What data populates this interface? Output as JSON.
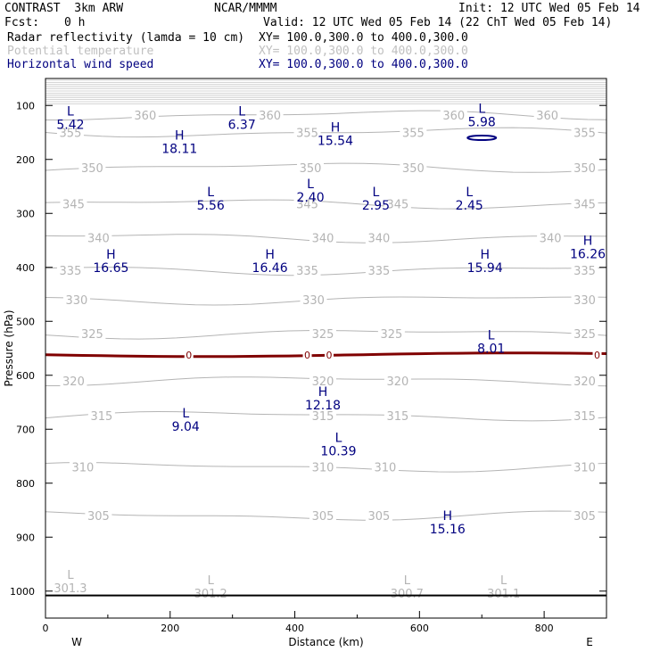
{
  "header": {
    "model": "CONTRAST  3km ARW",
    "source": "NCAR/MMMM",
    "init": "Init: 12 UTC Wed 05 Feb 14",
    "fcst_label": "Fcst:",
    "fcst_value": "0 h",
    "valid": "Valid: 12 UTC Wed 05 Feb 14 (22 ChT Wed 05 Feb 14)",
    "fields": [
      {
        "name": "Radar reflectivity (lamda = 10 cm)",
        "xy": "XY= 100.0,300.0 to 400.0,300.0",
        "color": "#000000"
      },
      {
        "name": "Potential temperature",
        "xy": "XY= 100.0,300.0 to 400.0,300.0",
        "color": "#c0c0c0"
      },
      {
        "name": "Horizontal wind speed",
        "xy": "XY= 100.0,300.0 to 400.0,300.0",
        "color": "#000080"
      }
    ]
  },
  "chart_data": {
    "type": "cross-section contour",
    "xlabel": "Distance (km)",
    "ylabel": "Pressure (hPa)",
    "xlim": [
      0,
      900
    ],
    "ylim": [
      1050,
      50
    ],
    "x_ticks": [
      "0",
      "200",
      "400",
      "600",
      "800"
    ],
    "x_tick_values": [
      0,
      200,
      400,
      600,
      800
    ],
    "y_ticks": [
      "100",
      "200",
      "300",
      "400",
      "500",
      "600",
      "700",
      "800",
      "900",
      "1000"
    ],
    "y_tick_values": [
      100,
      200,
      300,
      400,
      500,
      600,
      700,
      800,
      900,
      1000
    ],
    "west_label": "W",
    "east_label": "E",
    "theta_contours": [
      {
        "value": 355,
        "p": 150,
        "labels": [
          {
            "x": 40,
            "text": "355"
          },
          {
            "x": 420,
            "text": "355"
          },
          {
            "x": 590,
            "text": "355"
          },
          {
            "x": 865,
            "text": "355"
          }
        ]
      },
      {
        "value": 360,
        "p": 118,
        "labels": [
          {
            "x": 160,
            "text": "360"
          },
          {
            "x": 360,
            "text": "360"
          },
          {
            "x": 655,
            "text": "360"
          },
          {
            "x": 805,
            "text": "360"
          }
        ]
      },
      {
        "value": 350,
        "p": 215,
        "labels": [
          {
            "x": 75,
            "text": "350"
          },
          {
            "x": 425,
            "text": "350"
          },
          {
            "x": 590,
            "text": "350"
          },
          {
            "x": 865,
            "text": "350"
          }
        ]
      },
      {
        "value": 345,
        "p": 282,
        "labels": [
          {
            "x": 45,
            "text": "345"
          },
          {
            "x": 420,
            "text": "345"
          },
          {
            "x": 565,
            "text": "345"
          },
          {
            "x": 865,
            "text": "345"
          }
        ]
      },
      {
        "value": 340,
        "p": 345,
        "labels": [
          {
            "x": 85,
            "text": "340"
          },
          {
            "x": 445,
            "text": "340"
          },
          {
            "x": 535,
            "text": "340"
          },
          {
            "x": 810,
            "text": "340"
          }
        ]
      },
      {
        "value": 335,
        "p": 405,
        "labels": [
          {
            "x": 40,
            "text": "335"
          },
          {
            "x": 420,
            "text": "335"
          },
          {
            "x": 535,
            "text": "335"
          },
          {
            "x": 865,
            "text": "335"
          }
        ]
      },
      {
        "value": 330,
        "p": 460,
        "labels": [
          {
            "x": 50,
            "text": "330"
          },
          {
            "x": 430,
            "text": "330"
          },
          {
            "x": 865,
            "text": "330"
          }
        ]
      },
      {
        "value": 325,
        "p": 523,
        "labels": [
          {
            "x": 75,
            "text": "325"
          },
          {
            "x": 445,
            "text": "325"
          },
          {
            "x": 555,
            "text": "325"
          },
          {
            "x": 865,
            "text": "325"
          }
        ]
      },
      {
        "value": 320,
        "p": 610,
        "labels": [
          {
            "x": 45,
            "text": "320"
          },
          {
            "x": 445,
            "text": "320"
          },
          {
            "x": 565,
            "text": "320"
          },
          {
            "x": 865,
            "text": "320"
          }
        ]
      },
      {
        "value": 315,
        "p": 675,
        "labels": [
          {
            "x": 90,
            "text": "315"
          },
          {
            "x": 445,
            "text": "315"
          },
          {
            "x": 565,
            "text": "315"
          },
          {
            "x": 865,
            "text": "315"
          }
        ]
      },
      {
        "value": 310,
        "p": 770,
        "labels": [
          {
            "x": 60,
            "text": "310"
          },
          {
            "x": 445,
            "text": "310"
          },
          {
            "x": 545,
            "text": "310"
          },
          {
            "x": 865,
            "text": "310"
          }
        ]
      },
      {
        "value": 305,
        "p": 860,
        "labels": [
          {
            "x": 85,
            "text": "305"
          },
          {
            "x": 445,
            "text": "305"
          },
          {
            "x": 535,
            "text": "305"
          },
          {
            "x": 865,
            "text": "305"
          }
        ]
      }
    ],
    "theta_extrema": [
      {
        "type": "L",
        "value": "301.3",
        "x": 40,
        "p": 1000
      },
      {
        "type": "L",
        "value": "301.2",
        "x": 265,
        "p": 1010
      },
      {
        "type": "L",
        "value": "300.7",
        "x": 580,
        "p": 1010
      },
      {
        "type": "L",
        "value": "301.1",
        "x": 735,
        "p": 1010
      }
    ],
    "wind_extrema": [
      {
        "type": "L",
        "value": "5.42",
        "x": 40,
        "p": 135
      },
      {
        "type": "L",
        "value": "6.37",
        "x": 315,
        "p": 135
      },
      {
        "type": "H",
        "value": "15.54",
        "x": 465,
        "p": 165
      },
      {
        "type": "L",
        "value": "5.98",
        "x": 700,
        "p": 130
      },
      {
        "type": "H",
        "value": "18.11",
        "x": 215,
        "p": 180
      },
      {
        "type": "L",
        "value": "2.40",
        "x": 425,
        "p": 270
      },
      {
        "type": "L",
        "value": "5.56",
        "x": 265,
        "p": 285
      },
      {
        "type": "L",
        "value": "2.95",
        "x": 530,
        "p": 285
      },
      {
        "type": "L",
        "value": "2.45",
        "x": 680,
        "p": 285
      },
      {
        "type": "H",
        "value": "16.26",
        "x": 870,
        "p": 375
      },
      {
        "type": "H",
        "value": "16.65",
        "x": 105,
        "p": 400
      },
      {
        "type": "H",
        "value": "16.46",
        "x": 360,
        "p": 400
      },
      {
        "type": "H",
        "value": "15.94",
        "x": 705,
        "p": 400
      },
      {
        "type": "L",
        "value": "8.01",
        "x": 715,
        "p": 550
      },
      {
        "type": "H",
        "value": "12.18",
        "x": 445,
        "p": 655
      },
      {
        "type": "L",
        "value": "9.04",
        "x": 225,
        "p": 695
      },
      {
        "type": "L",
        "value": "10.39",
        "x": 470,
        "p": 740
      },
      {
        "type": "H",
        "value": "15.16",
        "x": 645,
        "p": 885
      }
    ],
    "reflectivity_contour": {
      "value": "0",
      "p": 562,
      "labels": [
        {
          "x": 230,
          "text": "0"
        },
        {
          "x": 420,
          "text": "0"
        },
        {
          "x": 455,
          "text": "0"
        },
        {
          "x": 885,
          "text": "0"
        }
      ]
    },
    "surface_pressure": 1008
  }
}
